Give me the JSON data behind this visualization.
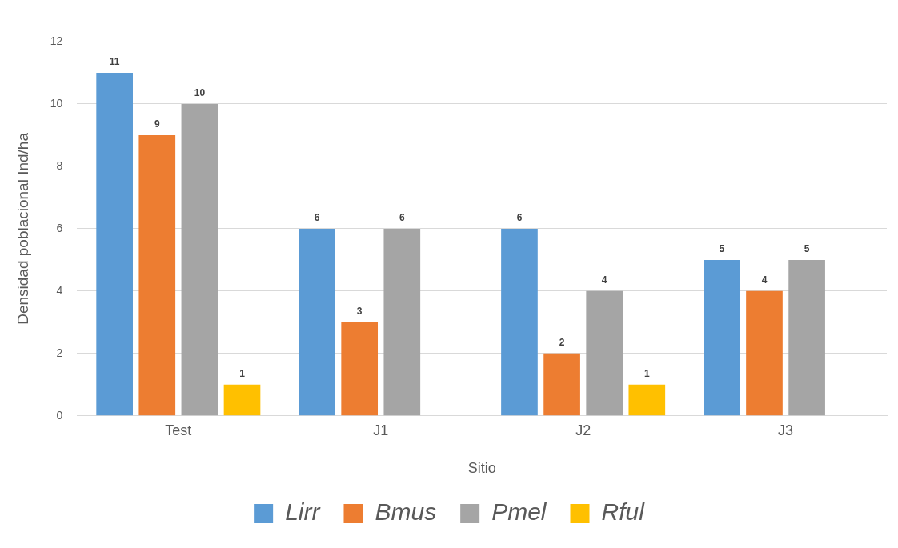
{
  "chart_data": {
    "type": "bar",
    "xlabel": "Sitio",
    "ylabel": "Densidad poblacional Ind/ha",
    "categories": [
      "Test",
      "J1",
      "J2",
      "J3"
    ],
    "series": [
      {
        "name": "Lirr",
        "color": "#5b9bd5",
        "values": [
          11,
          6,
          6,
          5
        ]
      },
      {
        "name": "Bmus",
        "color": "#ed7d31",
        "values": [
          9,
          3,
          2,
          4
        ]
      },
      {
        "name": "Pmel",
        "color": "#a5a5a5",
        "values": [
          10,
          6,
          4,
          5
        ]
      },
      {
        "name": "Rful",
        "color": "#ffc000",
        "values": [
          1,
          null,
          1,
          null
        ]
      }
    ],
    "ylim": [
      0,
      12
    ],
    "yticks": [
      0,
      2,
      4,
      6,
      8,
      10,
      12
    ],
    "grid": "y",
    "legend": "bottom",
    "data_labels": true
  }
}
